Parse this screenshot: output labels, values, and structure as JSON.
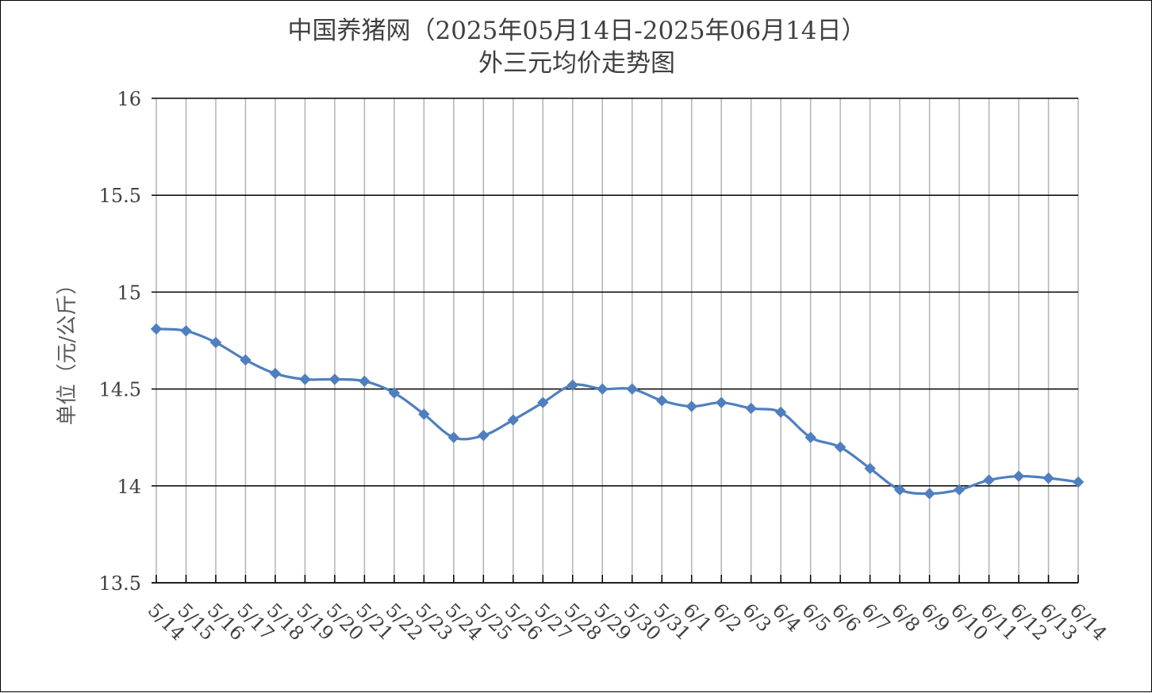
{
  "chart_data": {
    "type": "line",
    "title": "中国养猪网（2025年05月14日-2025年06月14日）",
    "subtitle": "外三元均价走势图",
    "xlabel": "",
    "ylabel": "单位（元/公斤）",
    "ylim": [
      13.5,
      16
    ],
    "y_ticks": [
      "13.5",
      "14",
      "14.5",
      "15",
      "15.5",
      "16"
    ],
    "categories": [
      "5/14",
      "5/15",
      "5/16",
      "5/17",
      "5/18",
      "5/19",
      "5/20",
      "5/21",
      "5/22",
      "5/23",
      "5/24",
      "5/25",
      "5/26",
      "5/27",
      "5/28",
      "5/29",
      "5/30",
      "5/31",
      "6/1",
      "6/2",
      "6/3",
      "6/4",
      "6/5",
      "6/6",
      "6/7",
      "6/8",
      "6/9",
      "6/10",
      "6/11",
      "6/12",
      "6/13",
      "6/14"
    ],
    "series": [
      {
        "color": "#4f7fbf",
        "values": [
          14.81,
          14.8,
          14.74,
          14.65,
          14.58,
          14.55,
          14.55,
          14.54,
          14.48,
          14.37,
          14.25,
          14.26,
          14.34,
          14.43,
          14.52,
          14.5,
          14.5,
          14.44,
          14.41,
          14.43,
          14.4,
          14.38,
          14.25,
          14.2,
          14.09,
          13.98,
          13.96,
          13.98,
          14.03,
          14.05,
          14.04,
          14.02
        ]
      }
    ],
    "grid": true,
    "smooth": true,
    "marker": "diamond"
  }
}
